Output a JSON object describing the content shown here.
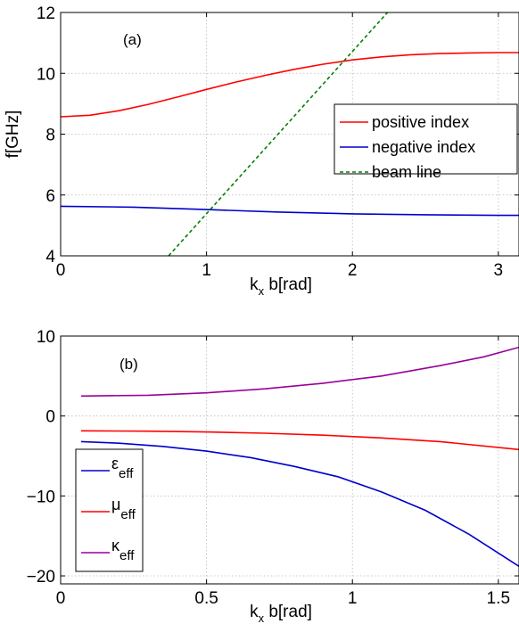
{
  "chart_data": [
    {
      "type": "line",
      "panel_label": "(a)",
      "xlabel": {
        "main": "k",
        "sub": "x",
        "rest": " b[rad]"
      },
      "ylabel": "f[GHz]",
      "xlim": [
        0,
        3.14159
      ],
      "ylim": [
        4,
        12
      ],
      "xticks": [
        0,
        1,
        2,
        3
      ],
      "yticks": [
        4,
        6,
        8,
        10,
        12
      ],
      "xtick_labels": [
        "0",
        "1",
        "2",
        "3"
      ],
      "ytick_labels": [
        "4",
        "6",
        "8",
        "10",
        "12"
      ],
      "grid": true,
      "legend_position": "right",
      "series": [
        {
          "name": "positive index",
          "color": "#ff0000",
          "style": "solid",
          "x": [
            0,
            0.2,
            0.4,
            0.6,
            0.8,
            1.0,
            1.2,
            1.4,
            1.6,
            1.8,
            2.0,
            2.2,
            2.4,
            2.6,
            2.8,
            3.0,
            3.14
          ],
          "y": [
            8.57,
            8.62,
            8.77,
            8.98,
            9.22,
            9.47,
            9.71,
            9.93,
            10.13,
            10.3,
            10.44,
            10.54,
            10.61,
            10.65,
            10.67,
            10.68,
            10.68
          ]
        },
        {
          "name": "negative index",
          "color": "#0000cc",
          "style": "solid",
          "x": [
            0,
            0.5,
            1.0,
            1.5,
            2.0,
            2.5,
            3.0,
            3.14
          ],
          "y": [
            5.63,
            5.6,
            5.52,
            5.44,
            5.38,
            5.35,
            5.33,
            5.33
          ]
        },
        {
          "name": "beam line",
          "color": "#008000",
          "style": "dashed",
          "x": [
            0.74,
            2.24
          ],
          "y": [
            4,
            12
          ]
        }
      ]
    },
    {
      "type": "line",
      "panel_label": "(b)",
      "xlabel": {
        "main": "k",
        "sub": "x",
        "rest": " b[rad]"
      },
      "ylabel": "",
      "xlim": [
        0,
        1.5708
      ],
      "ylim": [
        -21,
        10
      ],
      "xticks": [
        0,
        0.5,
        1,
        1.5
      ],
      "yticks": [
        10,
        0,
        -10,
        -20
      ],
      "xtick_labels": [
        "0",
        "0.5",
        "1",
        "1.5"
      ],
      "ytick_labels": [
        "10",
        "0",
        "−10",
        "−20"
      ],
      "grid": true,
      "legend_position": "bottom-left",
      "series": [
        {
          "name": "ε",
          "name_sub": "eff",
          "color": "#0000cc",
          "style": "solid",
          "x": [
            0.07,
            0.2,
            0.35,
            0.5,
            0.65,
            0.8,
            0.95,
            1.1,
            1.25,
            1.4,
            1.5708
          ],
          "y": [
            -3.2,
            -3.4,
            -3.8,
            -4.4,
            -5.2,
            -6.3,
            -7.6,
            -9.5,
            -11.8,
            -14.8,
            -18.8
          ]
        },
        {
          "name": "μ",
          "name_sub": "eff",
          "color": "#ff0000",
          "style": "solid",
          "x": [
            0.07,
            0.3,
            0.5,
            0.7,
            0.9,
            1.1,
            1.3,
            1.5708
          ],
          "y": [
            -1.85,
            -1.9,
            -2.0,
            -2.15,
            -2.4,
            -2.75,
            -3.2,
            -4.2
          ]
        },
        {
          "name": "κ",
          "name_sub": "eff",
          "color": "#990099",
          "style": "solid",
          "x": [
            0.07,
            0.3,
            0.5,
            0.7,
            0.9,
            1.1,
            1.3,
            1.45,
            1.5708
          ],
          "y": [
            2.5,
            2.6,
            2.9,
            3.4,
            4.1,
            5.0,
            6.3,
            7.4,
            8.6
          ]
        }
      ]
    }
  ]
}
